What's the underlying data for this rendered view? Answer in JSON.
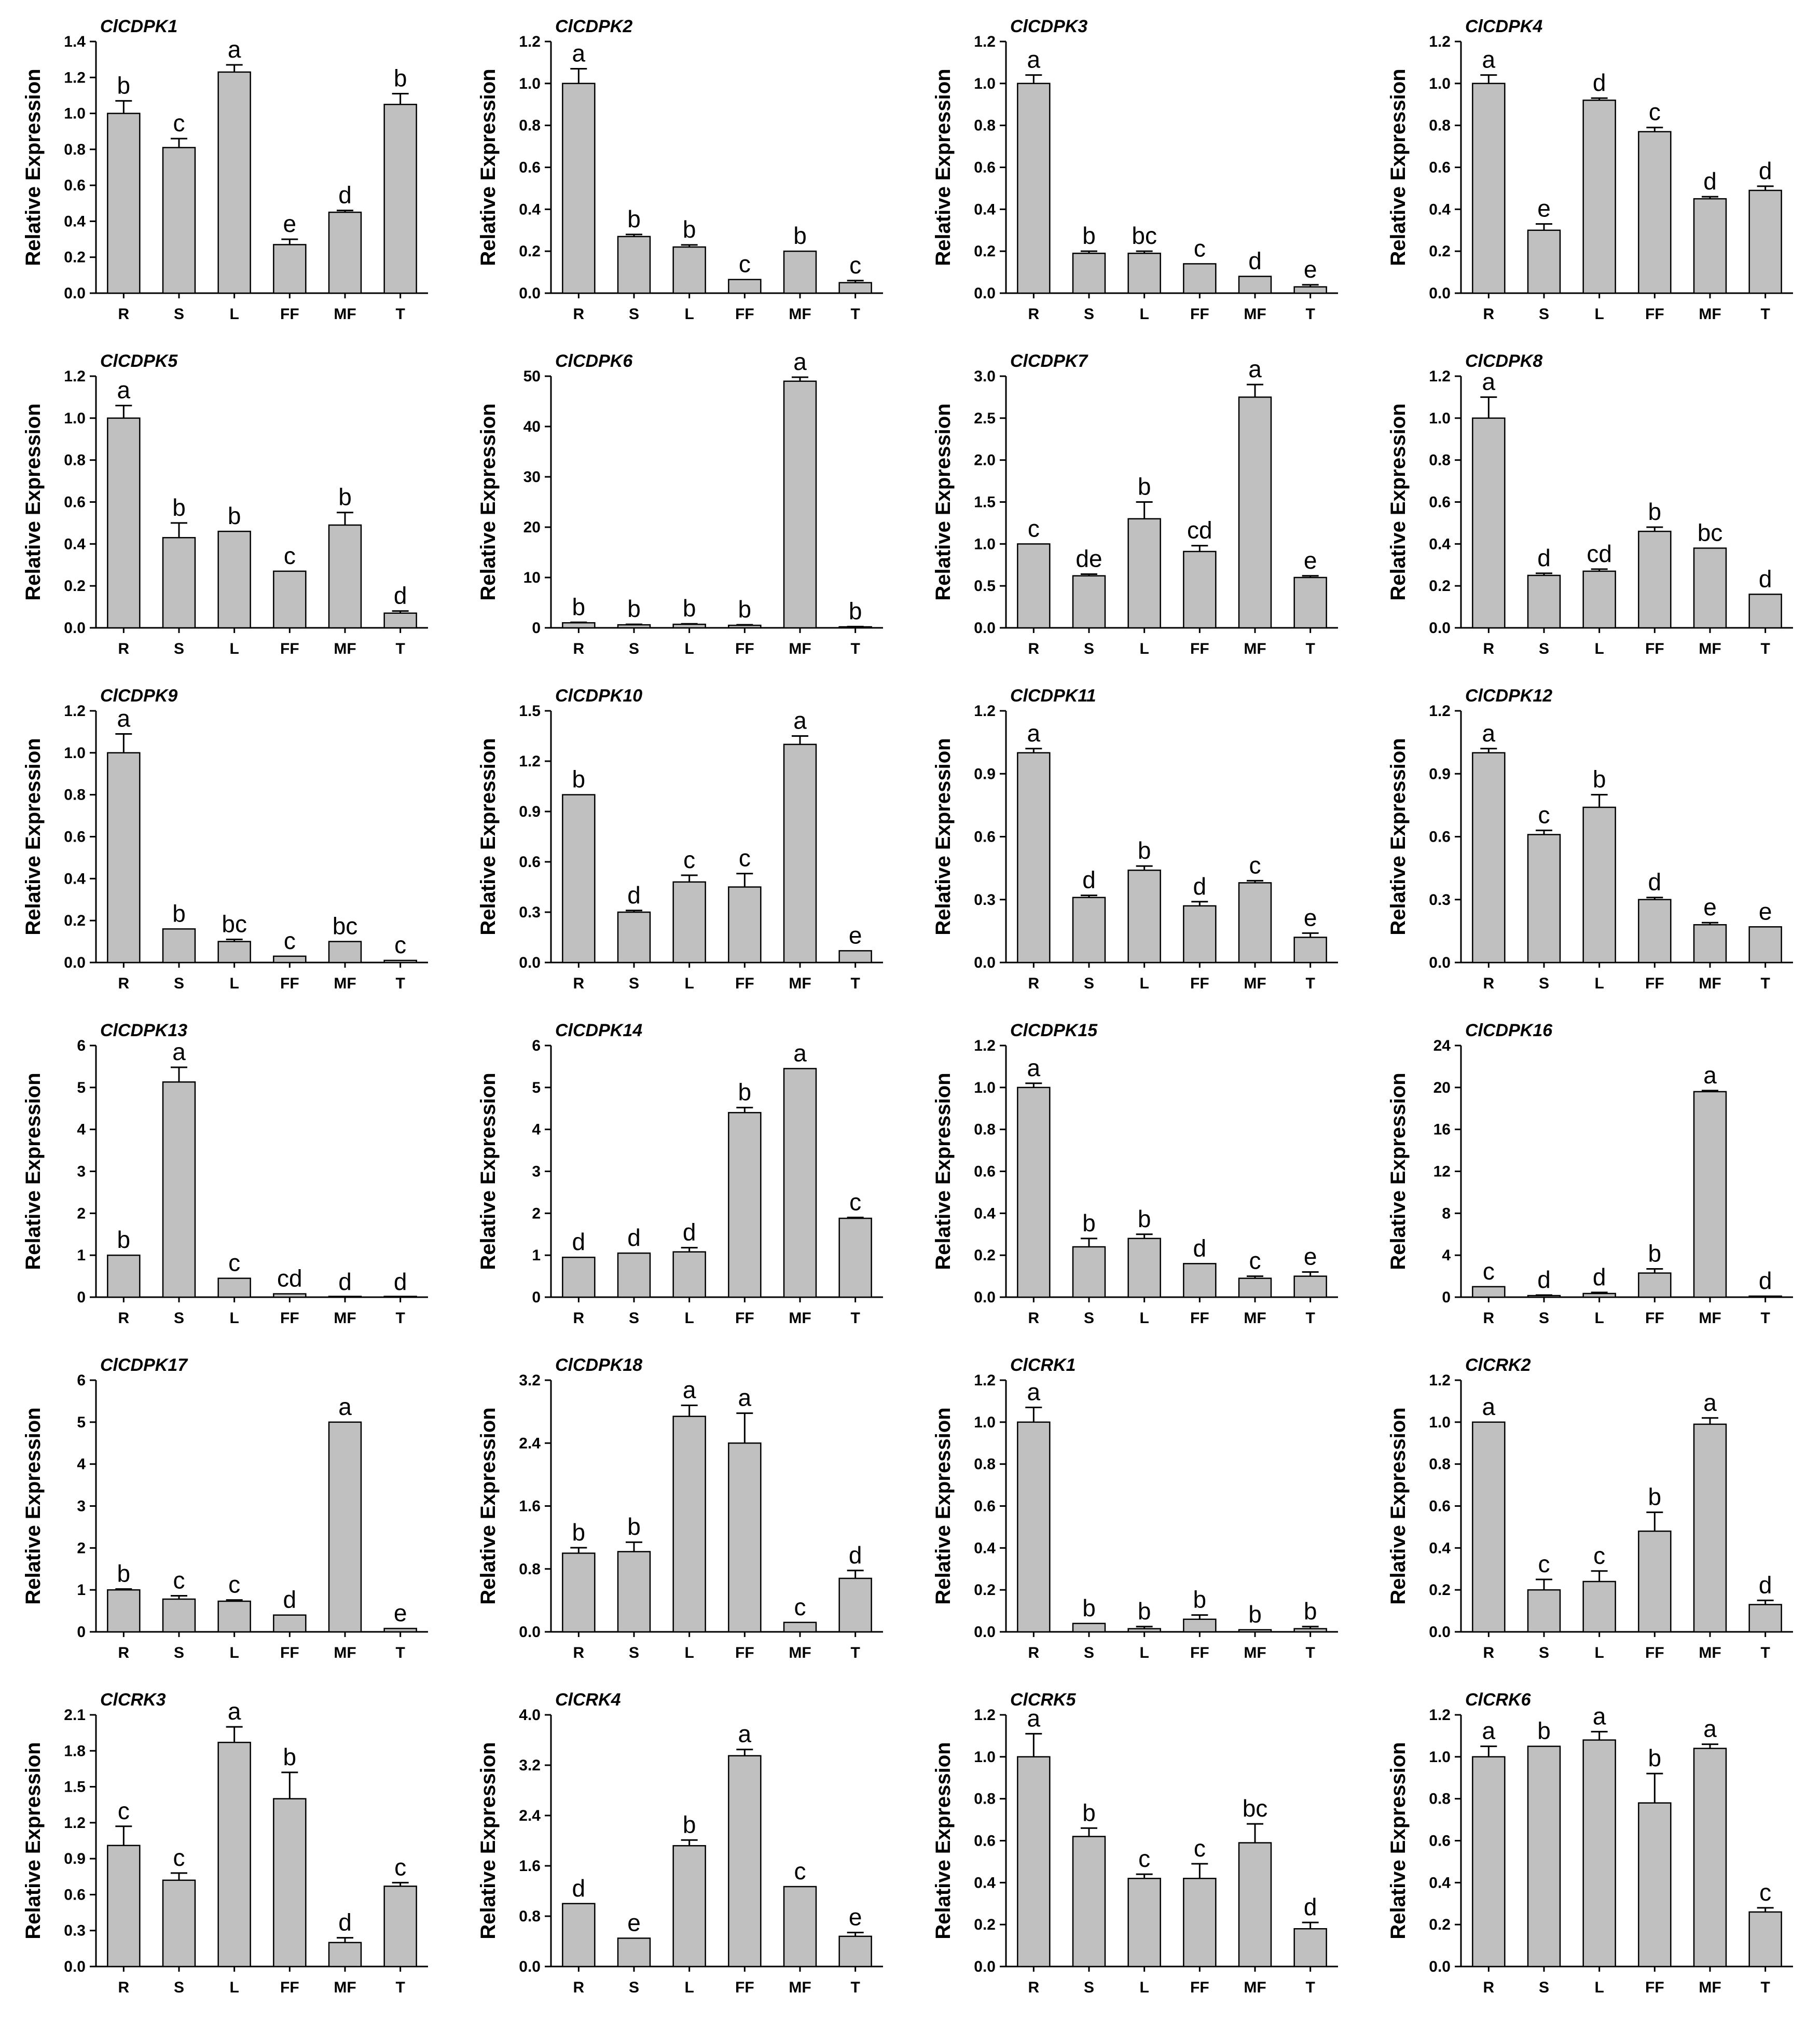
{
  "chart_data": [
    {
      "type": "bar",
      "title": "ClCDPK1",
      "ylabel": "Relative Expression",
      "categories": [
        "R",
        "S",
        "L",
        "FF",
        "MF",
        "T"
      ],
      "values": [
        1.0,
        0.81,
        1.23,
        0.27,
        0.45,
        1.05
      ],
      "errors": [
        0.07,
        0.05,
        0.04,
        0.03,
        0.01,
        0.06
      ],
      "letters": [
        "b",
        "c",
        "a",
        "e",
        "d",
        "b"
      ],
      "ylim": [
        0,
        1.4
      ],
      "yticks": [
        "0.0",
        "0.2",
        "0.4",
        "0.6",
        "0.8",
        "1.0",
        "1.2",
        "1.4"
      ]
    },
    {
      "type": "bar",
      "title": "ClCDPK2",
      "ylabel": "Relative Expression",
      "categories": [
        "R",
        "S",
        "L",
        "FF",
        "MF",
        "T"
      ],
      "values": [
        1.0,
        0.27,
        0.22,
        0.065,
        0.2,
        0.05
      ],
      "errors": [
        0.07,
        0.01,
        0.01,
        0.0,
        0.0,
        0.01
      ],
      "letters": [
        "a",
        "b",
        "b",
        "c",
        "b",
        "c"
      ],
      "ylim": [
        0,
        1.2
      ],
      "yticks": [
        "0.0",
        "0.2",
        "0.4",
        "0.6",
        "0.8",
        "1.0",
        "1.2"
      ]
    },
    {
      "type": "bar",
      "title": "ClCDPK3",
      "ylabel": "Relative Expression",
      "categories": [
        "R",
        "S",
        "L",
        "FF",
        "MF",
        "T"
      ],
      "values": [
        1.0,
        0.19,
        0.19,
        0.14,
        0.08,
        0.03
      ],
      "errors": [
        0.04,
        0.01,
        0.01,
        0.0,
        0.0,
        0.01
      ],
      "letters": [
        "a",
        "b",
        "bc",
        "c",
        "d",
        "e"
      ],
      "ylim": [
        0,
        1.2
      ],
      "yticks": [
        "0.0",
        "0.2",
        "0.4",
        "0.6",
        "0.8",
        "1.0",
        "1.2"
      ]
    },
    {
      "type": "bar",
      "title": "ClCDPK4",
      "ylabel": "Relative Expression",
      "categories": [
        "R",
        "S",
        "L",
        "FF",
        "MF",
        "T"
      ],
      "values": [
        1.0,
        0.3,
        0.92,
        0.77,
        0.45,
        0.49
      ],
      "errors": [
        0.04,
        0.03,
        0.01,
        0.02,
        0.01,
        0.02
      ],
      "letters": [
        "a",
        "e",
        "d",
        "c",
        "d",
        "d"
      ],
      "ylim": [
        0,
        1.2
      ],
      "yticks": [
        "0.0",
        "0.2",
        "0.4",
        "0.6",
        "0.8",
        "1.0",
        "1.2"
      ]
    },
    {
      "type": "bar",
      "title": "ClCDPK5",
      "ylabel": "Relative Expression",
      "categories": [
        "R",
        "S",
        "L",
        "FF",
        "MF",
        "T"
      ],
      "values": [
        1.0,
        0.43,
        0.46,
        0.27,
        0.49,
        0.07
      ],
      "errors": [
        0.06,
        0.07,
        0.0,
        0.0,
        0.06,
        0.01
      ],
      "letters": [
        "a",
        "b",
        "b",
        "c",
        "b",
        "d"
      ],
      "ylim": [
        0,
        1.2
      ],
      "yticks": [
        "0.0",
        "0.2",
        "0.4",
        "0.6",
        "0.8",
        "1.0",
        "1.2"
      ]
    },
    {
      "type": "bar",
      "title": "ClCDPK6",
      "ylabel": "Relative Expression",
      "categories": [
        "R",
        "S",
        "L",
        "FF",
        "MF",
        "T"
      ],
      "values": [
        1.0,
        0.6,
        0.7,
        0.5,
        49.0,
        0.2
      ],
      "errors": [
        0.1,
        0.1,
        0.1,
        0.1,
        0.8,
        0.05
      ],
      "letters": [
        "b",
        "b",
        "b",
        "b",
        "a",
        "b"
      ],
      "ylim": [
        0,
        50
      ],
      "yticks": [
        "0",
        "10",
        "20",
        "30",
        "40",
        "50"
      ]
    },
    {
      "type": "bar",
      "title": "ClCDPK7",
      "ylabel": "Relative Expression",
      "categories": [
        "R",
        "S",
        "L",
        "FF",
        "MF",
        "T"
      ],
      "values": [
        1.0,
        0.62,
        1.3,
        0.91,
        2.75,
        0.6
      ],
      "errors": [
        0.0,
        0.02,
        0.2,
        0.07,
        0.15,
        0.02
      ],
      "letters": [
        "c",
        "de",
        "b",
        "cd",
        "a",
        "e"
      ],
      "ylim": [
        0,
        3.0
      ],
      "yticks": [
        "0.0",
        "0.5",
        "1.0",
        "1.5",
        "2.0",
        "2.5",
        "3.0"
      ]
    },
    {
      "type": "bar",
      "title": "ClCDPK8",
      "ylabel": "Relative Expression",
      "categories": [
        "R",
        "S",
        "L",
        "FF",
        "MF",
        "T"
      ],
      "values": [
        1.0,
        0.25,
        0.27,
        0.46,
        0.38,
        0.16
      ],
      "errors": [
        0.1,
        0.01,
        0.01,
        0.02,
        0.0,
        0.0
      ],
      "letters": [
        "a",
        "d",
        "cd",
        "b",
        "bc",
        "d"
      ],
      "ylim": [
        0,
        1.2
      ],
      "yticks": [
        "0.0",
        "0.2",
        "0.4",
        "0.6",
        "0.8",
        "1.0",
        "1.2"
      ]
    },
    {
      "type": "bar",
      "title": "ClCDPK9",
      "ylabel": "Relative Expression",
      "categories": [
        "R",
        "S",
        "L",
        "FF",
        "MF",
        "T"
      ],
      "values": [
        1.0,
        0.16,
        0.1,
        0.03,
        0.1,
        0.01
      ],
      "errors": [
        0.09,
        0.0,
        0.01,
        0.0,
        0.0,
        0.0
      ],
      "letters": [
        "a",
        "b",
        "bc",
        "c",
        "bc",
        "c"
      ],
      "ylim": [
        0,
        1.2
      ],
      "yticks": [
        "0.0",
        "0.2",
        "0.4",
        "0.6",
        "0.8",
        "1.0",
        "1.2"
      ]
    },
    {
      "type": "bar",
      "title": "ClCDPK10",
      "ylabel": "Relative Expression",
      "categories": [
        "R",
        "S",
        "L",
        "FF",
        "MF",
        "T"
      ],
      "values": [
        1.0,
        0.3,
        0.48,
        0.45,
        1.3,
        0.07
      ],
      "errors": [
        0.0,
        0.01,
        0.04,
        0.08,
        0.05,
        0.0
      ],
      "letters": [
        "b",
        "d",
        "c",
        "c",
        "a",
        "e"
      ],
      "ylim": [
        0,
        1.5
      ],
      "yticks": [
        "0.0",
        "0.3",
        "0.6",
        "0.9",
        "1.2",
        "1.5"
      ]
    },
    {
      "type": "bar",
      "title": "ClCDPK11",
      "ylabel": "Relative Expression",
      "categories": [
        "R",
        "S",
        "L",
        "FF",
        "MF",
        "T"
      ],
      "values": [
        1.0,
        0.31,
        0.44,
        0.27,
        0.38,
        0.12
      ],
      "errors": [
        0.02,
        0.01,
        0.02,
        0.02,
        0.01,
        0.02
      ],
      "letters": [
        "a",
        "d",
        "b",
        "d",
        "c",
        "e"
      ],
      "ylim": [
        0,
        1.2
      ],
      "yticks": [
        "0.0",
        "0.3",
        "0.6",
        "0.9",
        "1.2"
      ]
    },
    {
      "type": "bar",
      "title": "ClCDPK12",
      "ylabel": "Relative Expression",
      "categories": [
        "R",
        "S",
        "L",
        "FF",
        "MF",
        "T"
      ],
      "values": [
        1.0,
        0.61,
        0.74,
        0.3,
        0.18,
        0.17
      ],
      "errors": [
        0.02,
        0.02,
        0.06,
        0.01,
        0.01,
        0.0
      ],
      "letters": [
        "a",
        "c",
        "b",
        "d",
        "e",
        "e"
      ],
      "ylim": [
        0,
        1.2
      ],
      "yticks": [
        "0.0",
        "0.3",
        "0.6",
        "0.9",
        "1.2"
      ]
    },
    {
      "type": "bar",
      "title": "ClCDPK13",
      "ylabel": "Relative Expression",
      "categories": [
        "R",
        "S",
        "L",
        "FF",
        "MF",
        "T"
      ],
      "values": [
        1.0,
        5.13,
        0.45,
        0.08,
        0.0,
        0.0
      ],
      "errors": [
        0.0,
        0.35,
        0.0,
        0.0,
        0.0,
        0.0
      ],
      "letters": [
        "b",
        "a",
        "c",
        "cd",
        "d",
        "d"
      ],
      "ylim": [
        0,
        6
      ],
      "yticks": [
        "0",
        "1",
        "2",
        "3",
        "4",
        "5",
        "6"
      ]
    },
    {
      "type": "bar",
      "title": "ClCDPK14",
      "ylabel": "Relative Expression",
      "categories": [
        "R",
        "S",
        "L",
        "FF",
        "MF",
        "T"
      ],
      "values": [
        0.95,
        1.05,
        1.08,
        4.4,
        5.45,
        1.88
      ],
      "errors": [
        0.0,
        0.0,
        0.1,
        0.12,
        0.0,
        0.02
      ],
      "letters": [
        "d",
        "d",
        "d",
        "b",
        "a",
        "c"
      ],
      "ylim": [
        0,
        6
      ],
      "yticks": [
        "0",
        "1",
        "2",
        "3",
        "4",
        "5",
        "6"
      ]
    },
    {
      "type": "bar",
      "title": "ClCDPK15",
      "ylabel": "Relative Expression",
      "categories": [
        "R",
        "S",
        "L",
        "FF",
        "MF",
        "T"
      ],
      "values": [
        1.0,
        0.24,
        0.28,
        0.16,
        0.09,
        0.1
      ],
      "errors": [
        0.02,
        0.04,
        0.02,
        0.0,
        0.01,
        0.02
      ],
      "letters": [
        "a",
        "b",
        "b",
        "d",
        "c",
        "e"
      ],
      "ylim": [
        0,
        1.2
      ],
      "yticks": [
        "0.0",
        "0.2",
        "0.4",
        "0.6",
        "0.8",
        "1.0",
        "1.2"
      ]
    },
    {
      "type": "bar",
      "title": "ClCDPK16",
      "ylabel": "Relative Expression",
      "categories": [
        "R",
        "S",
        "L",
        "FF",
        "MF",
        "T"
      ],
      "values": [
        1.0,
        0.15,
        0.35,
        2.3,
        19.6,
        0.1
      ],
      "errors": [
        0.0,
        0.05,
        0.1,
        0.4,
        0.1,
        0.0
      ],
      "letters": [
        "c",
        "d",
        "d",
        "b",
        "a",
        "d"
      ],
      "ylim": [
        0,
        24
      ],
      "yticks": [
        "0",
        "4",
        "8",
        "12",
        "16",
        "20",
        "24"
      ]
    },
    {
      "type": "bar",
      "title": "ClCDPK17",
      "ylabel": "Relative Expression",
      "categories": [
        "R",
        "S",
        "L",
        "FF",
        "MF",
        "T"
      ],
      "values": [
        1.0,
        0.78,
        0.73,
        0.4,
        5.0,
        0.08
      ],
      "errors": [
        0.02,
        0.08,
        0.03,
        0.0,
        0.0,
        0.0
      ],
      "letters": [
        "b",
        "c",
        "c",
        "d",
        "a",
        "e"
      ],
      "ylim": [
        0,
        6
      ],
      "yticks": [
        "0",
        "1",
        "2",
        "3",
        "4",
        "5",
        "6"
      ]
    },
    {
      "type": "bar",
      "title": "ClCDPK18",
      "ylabel": "Relative Expression",
      "categories": [
        "R",
        "S",
        "L",
        "FF",
        "MF",
        "T"
      ],
      "values": [
        1.0,
        1.02,
        2.74,
        2.4,
        0.12,
        0.68
      ],
      "errors": [
        0.07,
        0.12,
        0.14,
        0.38,
        0.0,
        0.1
      ],
      "letters": [
        "b",
        "b",
        "a",
        "a",
        "c",
        "d"
      ],
      "ylim": [
        0,
        3.2
      ],
      "yticks": [
        "0.0",
        "0.8",
        "1.6",
        "2.4",
        "3.2"
      ]
    },
    {
      "type": "bar",
      "title": "ClCRK1",
      "ylabel": "Relative Expression",
      "categories": [
        "R",
        "S",
        "L",
        "FF",
        "MF",
        "T"
      ],
      "values": [
        1.0,
        0.04,
        0.015,
        0.06,
        0.01,
        0.015
      ],
      "errors": [
        0.07,
        0.0,
        0.01,
        0.02,
        0.0,
        0.01
      ],
      "letters": [
        "a",
        "b",
        "b",
        "b",
        "b",
        "b"
      ],
      "ylim": [
        0,
        1.2
      ],
      "yticks": [
        "0.0",
        "0.2",
        "0.4",
        "0.6",
        "0.8",
        "1.0",
        "1.2"
      ]
    },
    {
      "type": "bar",
      "title": "ClCRK2",
      "ylabel": "Relative Expression",
      "categories": [
        "R",
        "S",
        "L",
        "FF",
        "MF",
        "T"
      ],
      "values": [
        1.0,
        0.2,
        0.24,
        0.48,
        0.99,
        0.13
      ],
      "errors": [
        0.0,
        0.05,
        0.05,
        0.09,
        0.03,
        0.02
      ],
      "letters": [
        "a",
        "c",
        "c",
        "b",
        "a",
        "d"
      ],
      "ylim": [
        0,
        1.2
      ],
      "yticks": [
        "0.0",
        "0.2",
        "0.4",
        "0.6",
        "0.8",
        "1.0",
        "1.2"
      ]
    },
    {
      "type": "bar",
      "title": "ClCRK3",
      "ylabel": "Relative Expression",
      "categories": [
        "R",
        "S",
        "L",
        "FF",
        "MF",
        "T"
      ],
      "values": [
        1.01,
        0.72,
        1.87,
        1.4,
        0.2,
        0.67
      ],
      "errors": [
        0.16,
        0.06,
        0.13,
        0.22,
        0.04,
        0.03
      ],
      "letters": [
        "c",
        "c",
        "a",
        "b",
        "d",
        "c"
      ],
      "ylim": [
        0,
        2.1
      ],
      "yticks": [
        "0.0",
        "0.3",
        "0.6",
        "0.9",
        "1.2",
        "1.5",
        "1.8",
        "2.1"
      ]
    },
    {
      "type": "bar",
      "title": "ClCRK4",
      "ylabel": "Relative Expression",
      "categories": [
        "R",
        "S",
        "L",
        "FF",
        "MF",
        "T"
      ],
      "values": [
        1.0,
        0.45,
        1.92,
        3.35,
        1.27,
        0.48
      ],
      "errors": [
        0.0,
        0.0,
        0.09,
        0.1,
        0.0,
        0.06
      ],
      "letters": [
        "d",
        "e",
        "b",
        "a",
        "c",
        "e"
      ],
      "ylim": [
        0,
        4.0
      ],
      "yticks": [
        "0.0",
        "0.8",
        "1.6",
        "2.4",
        "3.2",
        "4.0"
      ]
    },
    {
      "type": "bar",
      "title": "ClCRK5",
      "ylabel": "Relative Expression",
      "categories": [
        "R",
        "S",
        "L",
        "FF",
        "MF",
        "T"
      ],
      "values": [
        1.0,
        0.62,
        0.42,
        0.42,
        0.59,
        0.18
      ],
      "errors": [
        0.11,
        0.04,
        0.02,
        0.07,
        0.09,
        0.03
      ],
      "letters": [
        "a",
        "b",
        "c",
        "c",
        "bc",
        "d"
      ],
      "ylim": [
        0,
        1.2
      ],
      "yticks": [
        "0.0",
        "0.2",
        "0.4",
        "0.6",
        "0.8",
        "1.0",
        "1.2"
      ]
    },
    {
      "type": "bar",
      "title": "ClCRK6",
      "ylabel": "Relative Expression",
      "categories": [
        "R",
        "S",
        "L",
        "FF",
        "MF",
        "T"
      ],
      "values": [
        1.0,
        1.05,
        1.08,
        0.78,
        1.04,
        0.26
      ],
      "errors": [
        0.05,
        0.0,
        0.04,
        0.14,
        0.02,
        0.02
      ],
      "letters": [
        "a",
        "b",
        "a",
        "b",
        "a",
        "c"
      ],
      "ylim": [
        0,
        1.2
      ],
      "yticks": [
        "0.0",
        "0.2",
        "0.4",
        "0.6",
        "0.8",
        "1.0",
        "1.2"
      ]
    }
  ]
}
